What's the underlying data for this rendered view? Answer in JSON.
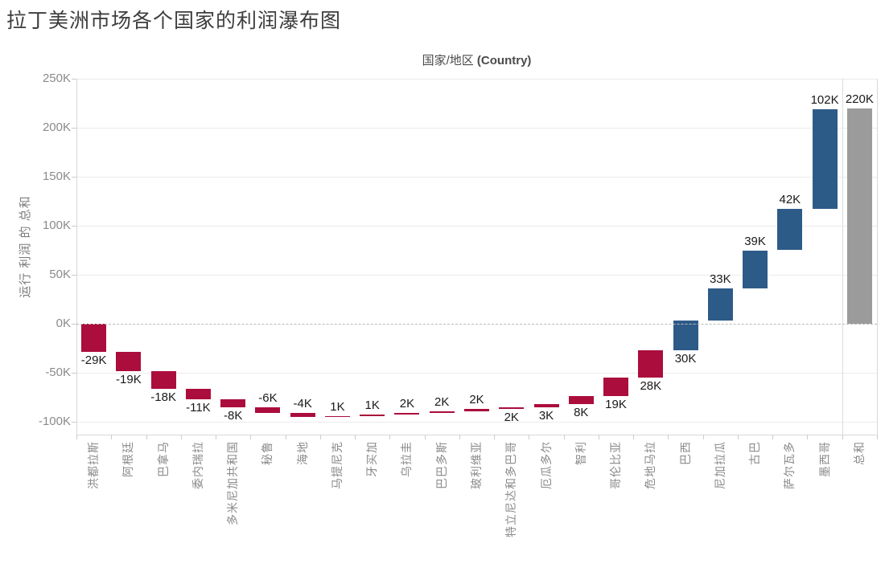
{
  "title": "拉丁美洲市场各个国家的利润瀑布图",
  "axis": {
    "x_title_cjk": "国家/地区 ",
    "x_title_latin": "(Country)",
    "y_title": "运行 利润 的 总和"
  },
  "colors": {
    "loss": "#ab0d3c",
    "gain": "#2d5b88",
    "total": "#9b9b9b"
  },
  "chart_data": {
    "type": "bar",
    "subtype": "waterfall",
    "title": "拉丁美洲市场各个国家的利润瀑布图",
    "xlabel": "国家/地区 (Country)",
    "ylabel": "运行 利润 的 总和",
    "grid": "horizontal, zero line dashed",
    "legend": "none",
    "ylim_k": [
      -113,
      253
    ],
    "y_ticks": [
      {
        "value_k": 250,
        "label": "250K"
      },
      {
        "value_k": 200,
        "label": "200K"
      },
      {
        "value_k": 150,
        "label": "150K"
      },
      {
        "value_k": 100,
        "label": "100K"
      },
      {
        "value_k": 50,
        "label": "50K"
      },
      {
        "value_k": 0,
        "label": "0K"
      },
      {
        "value_k": -50,
        "label": "-50K"
      },
      {
        "value_k": -100,
        "label": "-100K"
      }
    ],
    "categories": [
      "洪都拉斯",
      "阿根廷",
      "巴拿马",
      "委内瑞拉",
      "多米尼加共和国",
      "秘鲁",
      "海地",
      "马提尼克",
      "牙买加",
      "乌拉圭",
      "巴巴多斯",
      "玻利维亚",
      "特立尼达和多巴哥",
      "厄瓜多尔",
      "智利",
      "哥伦比亚",
      "危地马拉",
      "巴西",
      "尼加拉瓜",
      "古巴",
      "萨尔瓦多",
      "墨西哥",
      "总和"
    ],
    "bars": [
      {
        "name": "洪都拉斯",
        "value_k": -29,
        "label": "-29K",
        "start_k": 0,
        "end_k": -29,
        "segment": "loss",
        "label_pos": "below"
      },
      {
        "name": "阿根廷",
        "value_k": -19,
        "label": "-19K",
        "start_k": -29,
        "end_k": -48,
        "segment": "loss",
        "label_pos": "below"
      },
      {
        "name": "巴拿马",
        "value_k": -18,
        "label": "-18K",
        "start_k": -48,
        "end_k": -66,
        "segment": "loss",
        "label_pos": "below"
      },
      {
        "name": "委内瑞拉",
        "value_k": -11,
        "label": "-11K",
        "start_k": -66,
        "end_k": -77,
        "segment": "loss",
        "label_pos": "below"
      },
      {
        "name": "多米尼加共和国",
        "value_k": -8,
        "label": "-8K",
        "start_k": -77,
        "end_k": -85,
        "segment": "loss",
        "label_pos": "below"
      },
      {
        "name": "秘鲁",
        "value_k": -6,
        "label": "-6K",
        "start_k": -85,
        "end_k": -91,
        "segment": "loss",
        "label_pos": "above"
      },
      {
        "name": "海地",
        "value_k": -4,
        "label": "-4K",
        "start_k": -91,
        "end_k": -95,
        "segment": "loss",
        "label_pos": "above"
      },
      {
        "name": "马提尼克",
        "value_k": 1,
        "label": "1K",
        "start_k": -95,
        "end_k": -94,
        "segment": "loss",
        "label_pos": "above"
      },
      {
        "name": "牙买加",
        "value_k": 1,
        "label": "1K",
        "start_k": -94,
        "end_k": -93,
        "segment": "loss",
        "label_pos": "above"
      },
      {
        "name": "乌拉圭",
        "value_k": 2,
        "label": "2K",
        "start_k": -93,
        "end_k": -91,
        "segment": "loss",
        "label_pos": "above"
      },
      {
        "name": "巴巴多斯",
        "value_k": 2,
        "label": "2K",
        "start_k": -91,
        "end_k": -89,
        "segment": "loss",
        "label_pos": "above"
      },
      {
        "name": "玻利维亚",
        "value_k": 2,
        "label": "2K",
        "start_k": -89,
        "end_k": -87,
        "segment": "loss",
        "label_pos": "above"
      },
      {
        "name": "特立尼达和多巴哥",
        "value_k": 2,
        "label": "2K",
        "start_k": -87,
        "end_k": -85,
        "segment": "loss",
        "label_pos": "below"
      },
      {
        "name": "厄瓜多尔",
        "value_k": 3,
        "label": "3K",
        "start_k": -85,
        "end_k": -82,
        "segment": "loss",
        "label_pos": "below"
      },
      {
        "name": "智利",
        "value_k": 8,
        "label": "8K",
        "start_k": -82,
        "end_k": -74,
        "segment": "loss",
        "label_pos": "below"
      },
      {
        "name": "哥伦比亚",
        "value_k": 19,
        "label": "19K",
        "start_k": -74,
        "end_k": -55,
        "segment": "loss",
        "label_pos": "below"
      },
      {
        "name": "危地马拉",
        "value_k": 28,
        "label": "28K",
        "start_k": -55,
        "end_k": -27,
        "segment": "loss",
        "label_pos": "below"
      },
      {
        "name": "巴西",
        "value_k": 30,
        "label": "30K",
        "start_k": -27,
        "end_k": 3,
        "segment": "gain",
        "label_pos": "below"
      },
      {
        "name": "尼加拉瓜",
        "value_k": 33,
        "label": "33K",
        "start_k": 3,
        "end_k": 36,
        "segment": "gain",
        "label_pos": "above"
      },
      {
        "name": "古巴",
        "value_k": 39,
        "label": "39K",
        "start_k": 36,
        "end_k": 75,
        "segment": "gain",
        "label_pos": "above"
      },
      {
        "name": "萨尔瓦多",
        "value_k": 42,
        "label": "42K",
        "start_k": 75,
        "end_k": 117,
        "segment": "gain",
        "label_pos": "above"
      },
      {
        "name": "墨西哥",
        "value_k": 102,
        "label": "102K",
        "start_k": 117,
        "end_k": 219,
        "segment": "gain",
        "label_pos": "above"
      },
      {
        "name": "总和",
        "value_k": 220,
        "label": "220K",
        "start_k": 0,
        "end_k": 220,
        "segment": "total",
        "label_pos": "above"
      }
    ]
  }
}
